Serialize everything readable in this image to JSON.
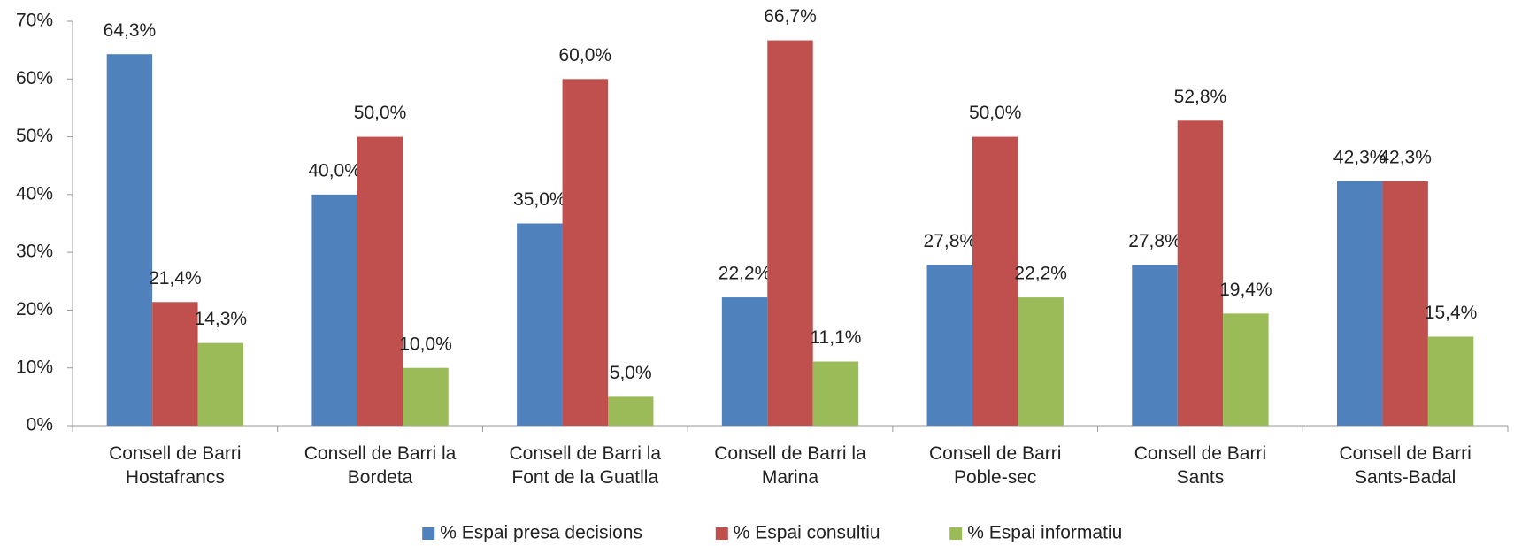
{
  "chart_data": {
    "type": "bar",
    "categories": [
      "Consell de Barri\nHostafrancs",
      "Consell de Barri la\nBordeta",
      "Consell de Barri la\nFont de la Guatlla",
      "Consell de Barri la\nMarina",
      "Consell de Barri\nPoble-sec",
      "Consell de Barri\nSants",
      "Consell de Barri\nSants-Badal"
    ],
    "series": [
      {
        "name": "% Espai presa decisions",
        "color": "#4f81bd",
        "values": [
          64.3,
          40.0,
          35.0,
          22.2,
          27.8,
          27.8,
          42.3
        ],
        "value_labels": [
          "64,3%",
          "40,0%",
          "35,0%",
          "22,2%",
          "27,8%",
          "27,8%",
          "42,3%"
        ]
      },
      {
        "name": "% Espai consultiu",
        "color": "#c0504d",
        "values": [
          21.4,
          50.0,
          60.0,
          66.7,
          50.0,
          52.8,
          42.3
        ],
        "value_labels": [
          "21,4%",
          "50,0%",
          "60,0%",
          "66,7%",
          "50,0%",
          "52,8%",
          "42,3%"
        ]
      },
      {
        "name": "% Espai informatiu",
        "color": "#9bbb59",
        "values": [
          14.3,
          10.0,
          5.0,
          11.1,
          22.2,
          19.4,
          15.4
        ],
        "value_labels": [
          "14,3%",
          "10,0%",
          "5,0%",
          "11,1%",
          "22,2%",
          "19,4%",
          "15,4%"
        ]
      }
    ],
    "ylim": [
      0,
      70
    ],
    "yticks": [
      {
        "value": 0,
        "label": "0%"
      },
      {
        "value": 10,
        "label": "10%"
      },
      {
        "value": 20,
        "label": "20%"
      },
      {
        "value": 30,
        "label": "30%"
      },
      {
        "value": 40,
        "label": "40%"
      },
      {
        "value": 50,
        "label": "50%"
      },
      {
        "value": 60,
        "label": "60%"
      },
      {
        "value": 70,
        "label": "70%"
      }
    ],
    "grid": false,
    "legend": "bottom"
  }
}
